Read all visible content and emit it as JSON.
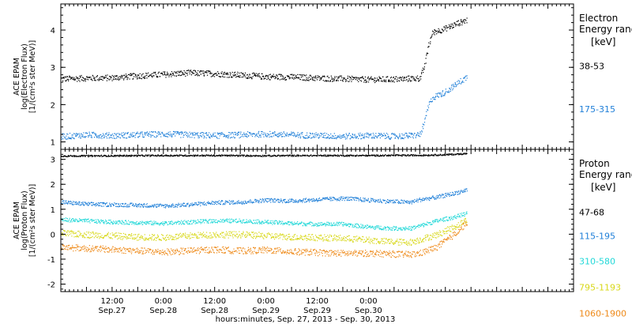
{
  "chart_data": [
    {
      "type": "scatter",
      "panel": "electron",
      "ylabel_lines": [
        "ACE EPAM",
        "log(Electron Flux)",
        "[1/(cm²s ster MeV)]"
      ],
      "ylim": [
        0.8,
        4.7
      ],
      "yticks": [
        1,
        2,
        3,
        4
      ],
      "yticklabels": [
        "1",
        "2",
        "3",
        "4"
      ],
      "legend_title_lines": [
        "Electron",
        "Energy range",
        "[keV]"
      ],
      "series": [
        {
          "name": "38-53",
          "color": "#000000",
          "legend_y": 2.95,
          "points": [
            [
              0,
              2.7
            ],
            [
              6,
              2.72
            ],
            [
              12,
              2.73
            ],
            [
              18,
              2.78
            ],
            [
              24,
              2.82
            ],
            [
              30,
              2.86
            ],
            [
              36,
              2.84
            ],
            [
              42,
              2.8
            ],
            [
              48,
              2.76
            ],
            [
              54,
              2.75
            ],
            [
              60,
              2.72
            ],
            [
              66,
              2.7
            ],
            [
              72,
              2.68
            ],
            [
              78,
              2.69
            ],
            [
              82,
              2.71
            ],
            [
              84,
              2.72
            ],
            [
              85,
              3.0
            ],
            [
              86,
              3.6
            ],
            [
              87,
              3.95
            ],
            [
              90,
              4.05
            ],
            [
              93,
              4.2
            ],
            [
              95,
              4.28
            ]
          ]
        },
        {
          "name": "175-315",
          "color": "#1f7fd8",
          "legend_y": 1.8,
          "points": [
            [
              0,
              1.15
            ],
            [
              6,
              1.2
            ],
            [
              12,
              1.18
            ],
            [
              18,
              1.2
            ],
            [
              24,
              1.22
            ],
            [
              30,
              1.2
            ],
            [
              36,
              1.18
            ],
            [
              42,
              1.2
            ],
            [
              48,
              1.22
            ],
            [
              54,
              1.2
            ],
            [
              60,
              1.18
            ],
            [
              66,
              1.16
            ],
            [
              72,
              1.18
            ],
            [
              78,
              1.16
            ],
            [
              82,
              1.18
            ],
            [
              84,
              1.2
            ],
            [
              85,
              1.5
            ],
            [
              86,
              2.0
            ],
            [
              87,
              2.2
            ],
            [
              90,
              2.35
            ],
            [
              93,
              2.6
            ],
            [
              95,
              2.75
            ]
          ]
        }
      ]
    },
    {
      "type": "scatter",
      "panel": "proton",
      "ylabel_lines": [
        "ACE EPAM",
        "log(Proton Flux)",
        "[1/(cm²s ster MeV)]"
      ],
      "ylim": [
        -2.3,
        3.4
      ],
      "yticks": [
        -2,
        -1,
        0,
        1,
        2,
        3
      ],
      "yticklabels": [
        "-2",
        "-1",
        "0",
        "1",
        "2",
        "3"
      ],
      "legend_title_lines": [
        "Proton",
        "Energy range",
        "[keV]"
      ],
      "series": [
        {
          "name": "47-68",
          "color": "#000000",
          "legend_y": 0.75,
          "points": [
            [
              0,
              3.15
            ],
            [
              12,
              3.16
            ],
            [
              24,
              3.17
            ],
            [
              36,
              3.17
            ],
            [
              48,
              3.16
            ],
            [
              60,
              3.17
            ],
            [
              72,
              3.17
            ],
            [
              84,
              3.18
            ],
            [
              90,
              3.2
            ],
            [
              95,
              3.25
            ]
          ]
        },
        {
          "name": "115-195",
          "color": "#1f7fd8",
          "legend_y": -0.2,
          "points": [
            [
              0,
              1.3
            ],
            [
              6,
              1.22
            ],
            [
              12,
              1.2
            ],
            [
              18,
              1.18
            ],
            [
              24,
              1.15
            ],
            [
              30,
              1.2
            ],
            [
              36,
              1.28
            ],
            [
              42,
              1.3
            ],
            [
              48,
              1.38
            ],
            [
              54,
              1.35
            ],
            [
              60,
              1.4
            ],
            [
              66,
              1.45
            ],
            [
              72,
              1.38
            ],
            [
              78,
              1.32
            ],
            [
              82,
              1.3
            ],
            [
              84,
              1.4
            ],
            [
              88,
              1.5
            ],
            [
              92,
              1.65
            ],
            [
              95,
              1.8
            ]
          ]
        },
        {
          "name": "310-580",
          "color": "#22d8d8",
          "legend_y": -1.2,
          "points": [
            [
              0,
              0.6
            ],
            [
              6,
              0.55
            ],
            [
              12,
              0.5
            ],
            [
              18,
              0.48
            ],
            [
              24,
              0.45
            ],
            [
              30,
              0.5
            ],
            [
              36,
              0.55
            ],
            [
              42,
              0.55
            ],
            [
              48,
              0.5
            ],
            [
              54,
              0.45
            ],
            [
              60,
              0.42
            ],
            [
              66,
              0.42
            ],
            [
              72,
              0.3
            ],
            [
              78,
              0.25
            ],
            [
              82,
              0.25
            ],
            [
              84,
              0.35
            ],
            [
              88,
              0.55
            ],
            [
              92,
              0.7
            ],
            [
              95,
              0.85
            ]
          ]
        },
        {
          "name": "795-1193",
          "color": "#d8d81a",
          "legend_y": -2.25,
          "points": [
            [
              0,
              0.05
            ],
            [
              6,
              0.0
            ],
            [
              12,
              -0.05
            ],
            [
              18,
              -0.1
            ],
            [
              24,
              -0.12
            ],
            [
              30,
              -0.05
            ],
            [
              36,
              0.0
            ],
            [
              42,
              0.0
            ],
            [
              48,
              -0.05
            ],
            [
              54,
              -0.1
            ],
            [
              60,
              -0.12
            ],
            [
              66,
              -0.15
            ],
            [
              72,
              -0.22
            ],
            [
              78,
              -0.3
            ],
            [
              82,
              -0.3
            ],
            [
              84,
              -0.2
            ],
            [
              88,
              0.0
            ],
            [
              92,
              0.3
            ],
            [
              95,
              0.6
            ]
          ]
        },
        {
          "name": "1060-1900",
          "color": "#ee8a1a",
          "legend_y": -3.3,
          "points": [
            [
              0,
              -0.5
            ],
            [
              6,
              -0.55
            ],
            [
              12,
              -0.6
            ],
            [
              18,
              -0.65
            ],
            [
              24,
              -0.7
            ],
            [
              30,
              -0.65
            ],
            [
              36,
              -0.6
            ],
            [
              42,
              -0.65
            ],
            [
              48,
              -0.62
            ],
            [
              54,
              -0.68
            ],
            [
              60,
              -0.72
            ],
            [
              66,
              -0.75
            ],
            [
              72,
              -0.75
            ],
            [
              78,
              -0.78
            ],
            [
              82,
              -0.8
            ],
            [
              84,
              -0.75
            ],
            [
              88,
              -0.5
            ],
            [
              92,
              0.0
            ],
            [
              95,
              0.5
            ]
          ]
        }
      ]
    }
  ],
  "x_axis": {
    "xlim": [
      0,
      120
    ],
    "major_ticks": [
      {
        "x": 12,
        "time": "12:00",
        "date": "Sep.27"
      },
      {
        "x": 24,
        "time": "0:00",
        "date": "Sep.28"
      },
      {
        "x": 36,
        "time": "12:00",
        "date": "Sep.28"
      },
      {
        "x": 48,
        "time": "0:00",
        "date": "Sep.29"
      },
      {
        "x": 60,
        "time": "12:00",
        "date": "Sep.29"
      },
      {
        "x": 72,
        "time": "0:00",
        "date": "Sep.30"
      }
    ],
    "xlabel": "hours:minutes, Sep. 27, 2013 - Sep. 30, 2013"
  }
}
